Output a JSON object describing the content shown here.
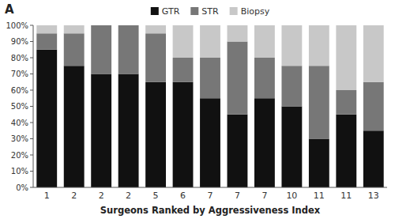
{
  "chart_data": {
    "type": "bar",
    "stacked": true,
    "title": "A",
    "x_label": "Surgeons Ranked by Aggressiveness Index",
    "categories": [
      "1",
      "2",
      "2",
      "2",
      "5",
      "6",
      "7",
      "7",
      "7",
      "10",
      "11",
      "11",
      "13"
    ],
    "series": [
      {
        "name": "GTR",
        "color": "#111111",
        "values": [
          85,
          75,
          70,
          70,
          65,
          65,
          55,
          45,
          55,
          50,
          30,
          45,
          35
        ]
      },
      {
        "name": "STR",
        "color": "#777777",
        "values": [
          10,
          20,
          30,
          30,
          30,
          15,
          25,
          45,
          25,
          25,
          45,
          15,
          30
        ]
      },
      {
        "name": "Biopsy",
        "color": "#c8c8c8",
        "values": [
          5,
          5,
          0,
          0,
          5,
          20,
          20,
          10,
          20,
          25,
          25,
          40,
          35
        ]
      }
    ],
    "ylim": [
      0,
      100
    ],
    "yticks": [
      {
        "value": 0,
        "label": "0%"
      },
      {
        "value": 10,
        "label": "10%"
      },
      {
        "value": 20,
        "label": "20%"
      },
      {
        "value": 30,
        "label": "30%"
      },
      {
        "value": 40,
        "label": "40%"
      },
      {
        "value": 50,
        "label": "50%"
      },
      {
        "value": 60,
        "label": "60%"
      },
      {
        "value": 70,
        "label": "70%"
      },
      {
        "value": 80,
        "label": "80%"
      },
      {
        "value": 90,
        "label": "90%"
      },
      {
        "value": 100,
        "label": "100%"
      }
    ],
    "grid": false,
    "legend": "top"
  }
}
